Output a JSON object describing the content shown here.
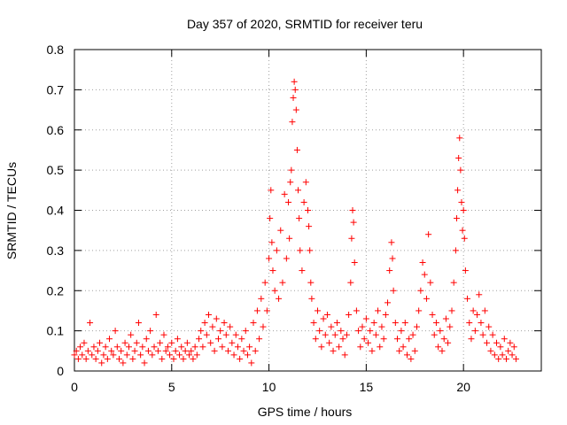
{
  "chart_data": {
    "type": "scatter",
    "title": "Day 357 of 2020, SRMTID for receiver teru",
    "xlabel": "GPS time / hours",
    "ylabel": "SRMTID / TECUs",
    "xlim": [
      0,
      24
    ],
    "ylim": [
      0,
      0.8
    ],
    "xticks": [
      0,
      5,
      10,
      15,
      20
    ],
    "yticks": [
      0,
      0.1,
      0.2,
      0.3,
      0.4,
      0.5,
      0.6,
      0.7,
      0.8
    ],
    "xtick_labels": [
      "0",
      "5",
      "10",
      "15",
      "20"
    ],
    "ytick_labels": [
      "0",
      "0.1",
      "0.2",
      "0.3",
      "0.4",
      "0.5",
      "0.6",
      "0.7",
      "0.8"
    ],
    "grid": true,
    "marker": "+",
    "color": "#ff0000",
    "series": [
      {
        "name": "SRMTID",
        "points": [
          [
            0.0,
            0.04
          ],
          [
            0.1,
            0.05
          ],
          [
            0.2,
            0.03
          ],
          [
            0.3,
            0.06
          ],
          [
            0.4,
            0.04
          ],
          [
            0.5,
            0.07
          ],
          [
            0.6,
            0.03
          ],
          [
            0.7,
            0.05
          ],
          [
            0.8,
            0.12
          ],
          [
            0.9,
            0.04
          ],
          [
            1.0,
            0.06
          ],
          [
            1.1,
            0.03
          ],
          [
            1.2,
            0.05
          ],
          [
            1.3,
            0.07
          ],
          [
            1.4,
            0.02
          ],
          [
            1.5,
            0.04
          ],
          [
            1.6,
            0.06
          ],
          [
            1.7,
            0.03
          ],
          [
            1.8,
            0.08
          ],
          [
            1.9,
            0.05
          ],
          [
            2.0,
            0.04
          ],
          [
            2.1,
            0.1
          ],
          [
            2.2,
            0.06
          ],
          [
            2.3,
            0.03
          ],
          [
            2.4,
            0.05
          ],
          [
            2.5,
            0.02
          ],
          [
            2.6,
            0.07
          ],
          [
            2.7,
            0.04
          ],
          [
            2.8,
            0.06
          ],
          [
            2.9,
            0.09
          ],
          [
            3.0,
            0.03
          ],
          [
            3.1,
            0.05
          ],
          [
            3.2,
            0.07
          ],
          [
            3.3,
            0.12
          ],
          [
            3.4,
            0.04
          ],
          [
            3.5,
            0.06
          ],
          [
            3.6,
            0.02
          ],
          [
            3.7,
            0.08
          ],
          [
            3.8,
            0.05
          ],
          [
            3.9,
            0.1
          ],
          [
            4.0,
            0.04
          ],
          [
            4.1,
            0.06
          ],
          [
            4.2,
            0.14
          ],
          [
            4.3,
            0.05
          ],
          [
            4.4,
            0.07
          ],
          [
            4.5,
            0.03
          ],
          [
            4.6,
            0.09
          ],
          [
            4.7,
            0.05
          ],
          [
            4.8,
            0.06
          ],
          [
            4.9,
            0.04
          ],
          [
            5.0,
            0.07
          ],
          [
            5.1,
            0.03
          ],
          [
            5.2,
            0.05
          ],
          [
            5.3,
            0.08
          ],
          [
            5.4,
            0.04
          ],
          [
            5.5,
            0.06
          ],
          [
            5.6,
            0.03
          ],
          [
            5.7,
            0.05
          ],
          [
            5.8,
            0.07
          ],
          [
            5.9,
            0.04
          ],
          [
            6.0,
            0.05
          ],
          [
            6.1,
            0.03
          ],
          [
            6.2,
            0.06
          ],
          [
            6.3,
            0.04
          ],
          [
            6.4,
            0.08
          ],
          [
            6.5,
            0.1
          ],
          [
            6.6,
            0.06
          ],
          [
            6.7,
            0.12
          ],
          [
            6.8,
            0.09
          ],
          [
            6.9,
            0.14
          ],
          [
            7.0,
            0.07
          ],
          [
            7.1,
            0.11
          ],
          [
            7.2,
            0.05
          ],
          [
            7.3,
            0.13
          ],
          [
            7.4,
            0.08
          ],
          [
            7.5,
            0.1
          ],
          [
            7.6,
            0.06
          ],
          [
            7.7,
            0.12
          ],
          [
            7.8,
            0.09
          ],
          [
            7.9,
            0.05
          ],
          [
            8.0,
            0.11
          ],
          [
            8.1,
            0.07
          ],
          [
            8.2,
            0.04
          ],
          [
            8.3,
            0.09
          ],
          [
            8.4,
            0.06
          ],
          [
            8.5,
            0.03
          ],
          [
            8.6,
            0.08
          ],
          [
            8.7,
            0.05
          ],
          [
            8.8,
            0.1
          ],
          [
            8.9,
            0.04
          ],
          [
            9.0,
            0.06
          ],
          [
            9.1,
            0.02
          ],
          [
            9.2,
            0.12
          ],
          [
            9.3,
            0.05
          ],
          [
            9.4,
            0.15
          ],
          [
            9.5,
            0.08
          ],
          [
            9.6,
            0.18
          ],
          [
            9.7,
            0.11
          ],
          [
            9.8,
            0.22
          ],
          [
            9.9,
            0.15
          ],
          [
            10.0,
            0.28
          ],
          [
            10.05,
            0.38
          ],
          [
            10.1,
            0.45
          ],
          [
            10.15,
            0.32
          ],
          [
            10.2,
            0.25
          ],
          [
            10.3,
            0.2
          ],
          [
            10.4,
            0.3
          ],
          [
            10.5,
            0.18
          ],
          [
            10.6,
            0.35
          ],
          [
            10.7,
            0.22
          ],
          [
            10.8,
            0.44
          ],
          [
            10.9,
            0.28
          ],
          [
            11.0,
            0.42
          ],
          [
            11.05,
            0.33
          ],
          [
            11.1,
            0.47
          ],
          [
            11.15,
            0.5
          ],
          [
            11.2,
            0.62
          ],
          [
            11.25,
            0.68
          ],
          [
            11.3,
            0.72
          ],
          [
            11.35,
            0.7
          ],
          [
            11.4,
            0.65
          ],
          [
            11.45,
            0.55
          ],
          [
            11.5,
            0.45
          ],
          [
            11.55,
            0.38
          ],
          [
            11.6,
            0.3
          ],
          [
            11.7,
            0.25
          ],
          [
            11.8,
            0.42
          ],
          [
            11.9,
            0.47
          ],
          [
            12.0,
            0.4
          ],
          [
            12.05,
            0.36
          ],
          [
            12.1,
            0.3
          ],
          [
            12.15,
            0.22
          ],
          [
            12.2,
            0.18
          ],
          [
            12.3,
            0.12
          ],
          [
            12.4,
            0.08
          ],
          [
            12.5,
            0.15
          ],
          [
            12.6,
            0.1
          ],
          [
            12.7,
            0.06
          ],
          [
            12.8,
            0.13
          ],
          [
            12.9,
            0.09
          ],
          [
            13.0,
            0.14
          ],
          [
            13.1,
            0.07
          ],
          [
            13.2,
            0.11
          ],
          [
            13.3,
            0.05
          ],
          [
            13.4,
            0.09
          ],
          [
            13.5,
            0.12
          ],
          [
            13.6,
            0.06
          ],
          [
            13.7,
            0.1
          ],
          [
            13.8,
            0.08
          ],
          [
            13.9,
            0.04
          ],
          [
            14.0,
            0.09
          ],
          [
            14.1,
            0.14
          ],
          [
            14.2,
            0.22
          ],
          [
            14.25,
            0.33
          ],
          [
            14.3,
            0.4
          ],
          [
            14.35,
            0.37
          ],
          [
            14.4,
            0.27
          ],
          [
            14.5,
            0.15
          ],
          [
            14.6,
            0.1
          ],
          [
            14.7,
            0.06
          ],
          [
            14.8,
            0.11
          ],
          [
            14.9,
            0.08
          ],
          [
            15.0,
            0.13
          ],
          [
            15.1,
            0.07
          ],
          [
            15.2,
            0.1
          ],
          [
            15.3,
            0.05
          ],
          [
            15.4,
            0.12
          ],
          [
            15.5,
            0.09
          ],
          [
            15.6,
            0.15
          ],
          [
            15.7,
            0.06
          ],
          [
            15.8,
            0.11
          ],
          [
            15.9,
            0.08
          ],
          [
            16.0,
            0.14
          ],
          [
            16.1,
            0.17
          ],
          [
            16.2,
            0.25
          ],
          [
            16.3,
            0.32
          ],
          [
            16.35,
            0.28
          ],
          [
            16.4,
            0.2
          ],
          [
            16.5,
            0.12
          ],
          [
            16.6,
            0.08
          ],
          [
            16.7,
            0.05
          ],
          [
            16.8,
            0.1
          ],
          [
            16.9,
            0.06
          ],
          [
            17.0,
            0.12
          ],
          [
            17.1,
            0.04
          ],
          [
            17.2,
            0.08
          ],
          [
            17.3,
            0.03
          ],
          [
            17.4,
            0.09
          ],
          [
            17.5,
            0.05
          ],
          [
            17.6,
            0.11
          ],
          [
            17.7,
            0.15
          ],
          [
            17.8,
            0.2
          ],
          [
            17.9,
            0.27
          ],
          [
            18.0,
            0.24
          ],
          [
            18.1,
            0.18
          ],
          [
            18.2,
            0.34
          ],
          [
            18.3,
            0.22
          ],
          [
            18.4,
            0.14
          ],
          [
            18.5,
            0.09
          ],
          [
            18.6,
            0.12
          ],
          [
            18.7,
            0.06
          ],
          [
            18.8,
            0.1
          ],
          [
            18.9,
            0.05
          ],
          [
            19.0,
            0.08
          ],
          [
            19.1,
            0.13
          ],
          [
            19.2,
            0.07
          ],
          [
            19.3,
            0.11
          ],
          [
            19.4,
            0.15
          ],
          [
            19.5,
            0.22
          ],
          [
            19.6,
            0.3
          ],
          [
            19.65,
            0.38
          ],
          [
            19.7,
            0.45
          ],
          [
            19.75,
            0.53
          ],
          [
            19.8,
            0.58
          ],
          [
            19.85,
            0.5
          ],
          [
            19.9,
            0.42
          ],
          [
            19.95,
            0.35
          ],
          [
            20.0,
            0.4
          ],
          [
            20.05,
            0.33
          ],
          [
            20.1,
            0.25
          ],
          [
            20.2,
            0.18
          ],
          [
            20.3,
            0.12
          ],
          [
            20.4,
            0.08
          ],
          [
            20.5,
            0.15
          ],
          [
            20.6,
            0.1
          ],
          [
            20.7,
            0.14
          ],
          [
            20.8,
            0.19
          ],
          [
            20.9,
            0.12
          ],
          [
            21.0,
            0.09
          ],
          [
            21.1,
            0.15
          ],
          [
            21.2,
            0.07
          ],
          [
            21.3,
            0.11
          ],
          [
            21.4,
            0.05
          ],
          [
            21.5,
            0.09
          ],
          [
            21.6,
            0.04
          ],
          [
            21.7,
            0.07
          ],
          [
            21.8,
            0.03
          ],
          [
            21.9,
            0.06
          ],
          [
            22.0,
            0.04
          ],
          [
            22.1,
            0.08
          ],
          [
            22.2,
            0.03
          ],
          [
            22.3,
            0.05
          ],
          [
            22.4,
            0.07
          ],
          [
            22.5,
            0.04
          ],
          [
            22.6,
            0.06
          ],
          [
            22.7,
            0.03
          ]
        ]
      }
    ]
  }
}
